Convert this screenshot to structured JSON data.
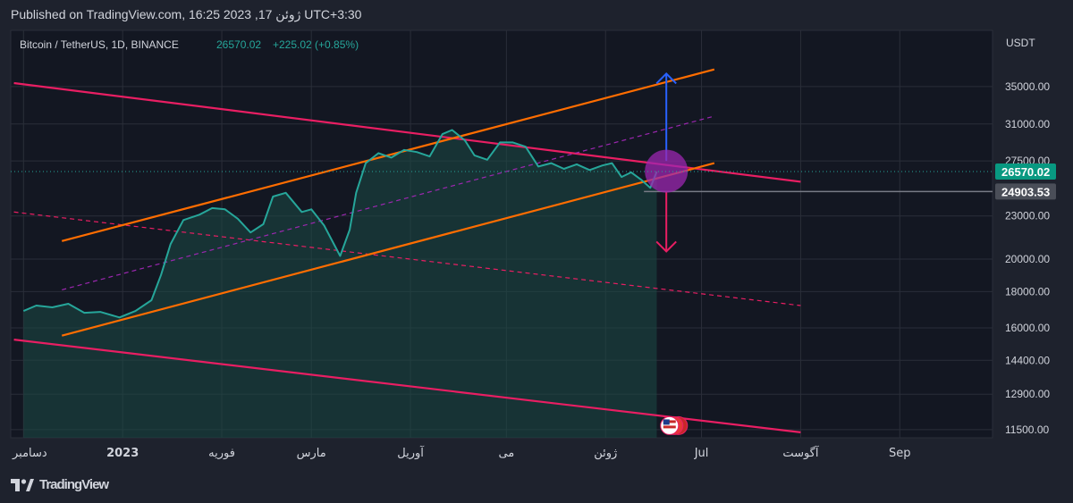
{
  "header": {
    "published": "Published on TradingView.com, 16:25 2023 ,17 ژوئن UTC+3:30"
  },
  "footer": {
    "brand": "TradingView",
    "logo_icon": "tradingview-logo-icon"
  },
  "legend": {
    "symbol": "Bitcoin / TetherUS, 1D, BINANCE",
    "price": "26570.02",
    "change": "+225.02 (+0.85%)"
  },
  "colors": {
    "background": "#1e222d",
    "plot_bg": "#131722",
    "grid": "#2a2e39",
    "price_line": "#26a69a",
    "area_fill": "#1b4a45",
    "magenta": "#e91e63",
    "orange": "#ff6d00",
    "purple": "#9c27b0",
    "blue": "#2962ff",
    "gray": "#787b86"
  },
  "chart_data": {
    "type": "line",
    "title": "Bitcoin / TetherUS, 1D, BINANCE",
    "scale": "log",
    "yunit": "USDT",
    "ylim": [
      11200,
      42000
    ],
    "x_ticks": [
      "دسامبر",
      "2023",
      "فوریه",
      "مارس",
      "آوریل",
      "می",
      "ژوئن",
      "Jul",
      "آگوست",
      "Sep"
    ],
    "y_ticks": [
      "35000.00",
      "31000.00",
      "27500.00",
      "23000.00",
      "20000.00",
      "18000.00",
      "16000.00",
      "14400.00",
      "12900.00",
      "11500.00"
    ],
    "last_price_label": "26570.02",
    "support_label": "24903.53",
    "series": [
      {
        "x": [
          "2022-12-01",
          "2022-12-05",
          "2022-12-10",
          "2022-12-15",
          "2022-12-20",
          "2022-12-25",
          "2022-12-31",
          "2023-01-05",
          "2023-01-10",
          "2023-01-13",
          "2023-01-16",
          "2023-01-20",
          "2023-01-25",
          "2023-01-29",
          "2023-02-02",
          "2023-02-06",
          "2023-02-10",
          "2023-02-14",
          "2023-02-17",
          "2023-02-21",
          "2023-02-26",
          "2023-03-01",
          "2023-03-05",
          "2023-03-10",
          "2023-03-13",
          "2023-03-15",
          "2023-03-18",
          "2023-03-22",
          "2023-03-26",
          "2023-03-30",
          "2023-04-03",
          "2023-04-07",
          "2023-04-11",
          "2023-04-14",
          "2023-04-18",
          "2023-04-21",
          "2023-04-25",
          "2023-04-29",
          "2023-05-03",
          "2023-05-07",
          "2023-05-11",
          "2023-05-15",
          "2023-05-19",
          "2023-05-23",
          "2023-05-27",
          "2023-05-31",
          "2023-06-03",
          "2023-06-06",
          "2023-06-09",
          "2023-06-12",
          "2023-06-15",
          "2023-06-17"
        ],
        "values": [
          16900,
          17200,
          17100,
          17300,
          16800,
          16850,
          16550,
          16900,
          17500,
          19000,
          21000,
          22700,
          23100,
          23600,
          23500,
          22800,
          21800,
          22400,
          24500,
          24800,
          23300,
          23500,
          22300,
          20200,
          22000,
          24800,
          27300,
          28200,
          27800,
          28500,
          28300,
          27900,
          30000,
          30400,
          29400,
          28000,
          27600,
          29200,
          29200,
          28800,
          27000,
          27300,
          26800,
          27200,
          26700,
          27100,
          27300,
          26100,
          26500,
          25900,
          25200,
          26570
        ]
      }
    ],
    "lines": [
      {
        "name": "channel-upper",
        "color": "magenta",
        "from": [
          "2022-11-28",
          35400
        ],
        "to": [
          "2023-08-01",
          25700
        ]
      },
      {
        "name": "channel-lower",
        "color": "magenta",
        "from": [
          "2022-11-28",
          15400
        ],
        "to": [
          "2023-08-01",
          11400
        ]
      },
      {
        "name": "channel-mid",
        "color": "magenta",
        "style": "dashed",
        "from": [
          "2022-11-28",
          23300
        ],
        "to": [
          "2023-08-01",
          17200
        ]
      },
      {
        "name": "rising-upper",
        "color": "orange",
        "from": [
          "2022-12-13",
          21200
        ],
        "to": [
          "2023-07-05",
          37000
        ]
      },
      {
        "name": "rising-lower",
        "color": "orange",
        "from": [
          "2022-12-13",
          15600
        ],
        "to": [
          "2023-07-05",
          27300
        ]
      },
      {
        "name": "rising-mid",
        "color": "purple",
        "style": "dashed",
        "from": [
          "2022-12-13",
          18100
        ],
        "to": [
          "2023-07-05",
          31800
        ]
      },
      {
        "name": "support-24903",
        "color": "gray",
        "from": [
          "2023-06-13",
          24903.53
        ],
        "to": [
          "2023-09-30",
          24903.53
        ]
      }
    ],
    "annotations": [
      {
        "name": "up-arrow",
        "color": "blue",
        "date": "2023-06-20",
        "from": 27500,
        "to": 36500
      },
      {
        "name": "down-arrow",
        "color": "magenta",
        "date": "2023-06-20",
        "from": 24900,
        "to": 20500
      },
      {
        "name": "breakout-circle",
        "color": "purple",
        "date": "2023-06-20",
        "value": 26600
      },
      {
        "name": "event-flag",
        "date": "2023-06-21",
        "value": 11650
      }
    ]
  }
}
